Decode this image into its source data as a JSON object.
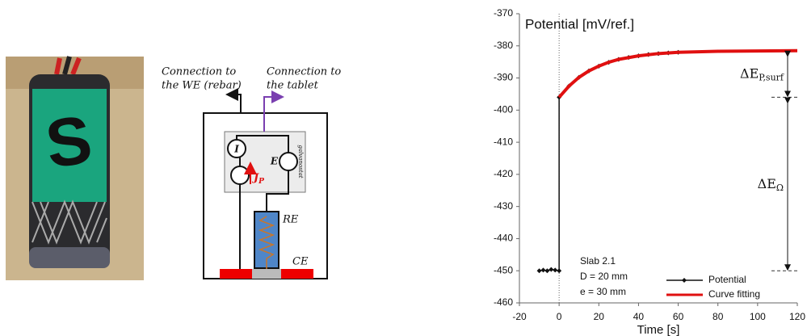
{
  "diagram": {
    "connection_we": [
      "Connection to",
      "the WE (rebar)"
    ],
    "connection_tablet": [
      "Connection to",
      "the tablet"
    ],
    "current_source": "I",
    "voltmeter": "E",
    "current_arrow": {
      "main": "J",
      "sub": "P"
    },
    "reference_electrode": "RE",
    "counter_electrode": "CE",
    "device": "galvanostat"
  },
  "chart_data": {
    "type": "line",
    "y_label": "Potential [mV/ref.]",
    "x_label": "Time [s]",
    "xlim": [
      -20,
      120
    ],
    "xticks": [
      -20,
      0,
      20,
      40,
      60,
      80,
      100,
      120
    ],
    "ylim": [
      -460,
      -370
    ],
    "yticks": [
      -460,
      -450,
      -440,
      -430,
      -420,
      -410,
      -400,
      -390,
      -380,
      -370
    ],
    "annotations": [
      "Slab 2.1",
      "D = 20 mm",
      "e = 30 mm"
    ],
    "delta_labels": [
      {
        "main": "ΔE",
        "sub": "P,surf"
      },
      {
        "main": "ΔE",
        "sub": "Ω"
      }
    ],
    "legend": "lower right",
    "series": [
      {
        "name": "Potential",
        "color": "#111111",
        "markers": true,
        "x": [
          -10,
          -8,
          -6,
          -4,
          -2,
          0,
          0,
          5,
          10,
          15,
          20,
          25,
          30,
          35,
          40,
          45,
          50,
          55,
          60
        ],
        "values": [
          -450,
          -449.8,
          -450,
          -449.6,
          -449.8,
          -450,
          -396,
          -392.5,
          -389.8,
          -387.8,
          -386.3,
          -385.1,
          -384.2,
          -383.6,
          -383.1,
          -382.7,
          -382.4,
          -382.2,
          -382.0
        ]
      },
      {
        "name": "Curve fitting",
        "color": "#e01010",
        "markers": false,
        "x": [
          0,
          5,
          10,
          15,
          20,
          25,
          30,
          40,
          50,
          60,
          80,
          100,
          120
        ],
        "values": [
          -396,
          -392.5,
          -389.8,
          -387.8,
          -386.3,
          -385.1,
          -384.2,
          -383.1,
          -382.4,
          -382.0,
          -381.7,
          -381.6,
          -381.5
        ]
      }
    ]
  }
}
